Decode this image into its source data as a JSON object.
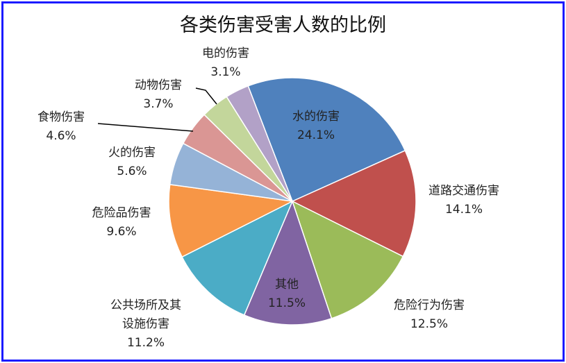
{
  "chart_data": {
    "type": "pie",
    "title": "各类伤害受害人数的比例",
    "start_angle_deg": -21,
    "direction": "clockwise",
    "slices": [
      {
        "label": "水的伤害",
        "value": 24.1,
        "value_label": "24.1%",
        "color": "#4f81bd"
      },
      {
        "label": "道路交通伤害",
        "value": 14.1,
        "value_label": "14.1%",
        "color": "#c0504d"
      },
      {
        "label": "危险行为伤害",
        "value": 12.5,
        "value_label": "12.5%",
        "color": "#9bbb59"
      },
      {
        "label": "其他",
        "value": 11.5,
        "value_label": "11.5%",
        "color": "#8064a2"
      },
      {
        "label": "公共场所及其设施伤害",
        "label_lines": [
          "公共场所及其",
          "设施伤害"
        ],
        "value": 11.2,
        "value_label": "11.2%",
        "color": "#4bacc6"
      },
      {
        "label": "危险品伤害",
        "value": 9.6,
        "value_label": "9.6%",
        "color": "#f79646"
      },
      {
        "label": "火的伤害",
        "value": 5.6,
        "value_label": "5.6%",
        "color": "#95b3d7"
      },
      {
        "label": "食物伤害",
        "value": 4.6,
        "value_label": "4.6%",
        "color": "#da9694"
      },
      {
        "label": "动物伤害",
        "value": 3.7,
        "value_label": "3.7%",
        "color": "#c3d69b"
      },
      {
        "label": "电的伤害",
        "value": 3.1,
        "value_label": "3.1%",
        "color": "#b2a1c7"
      }
    ],
    "frame_color": "#1a1aff"
  }
}
